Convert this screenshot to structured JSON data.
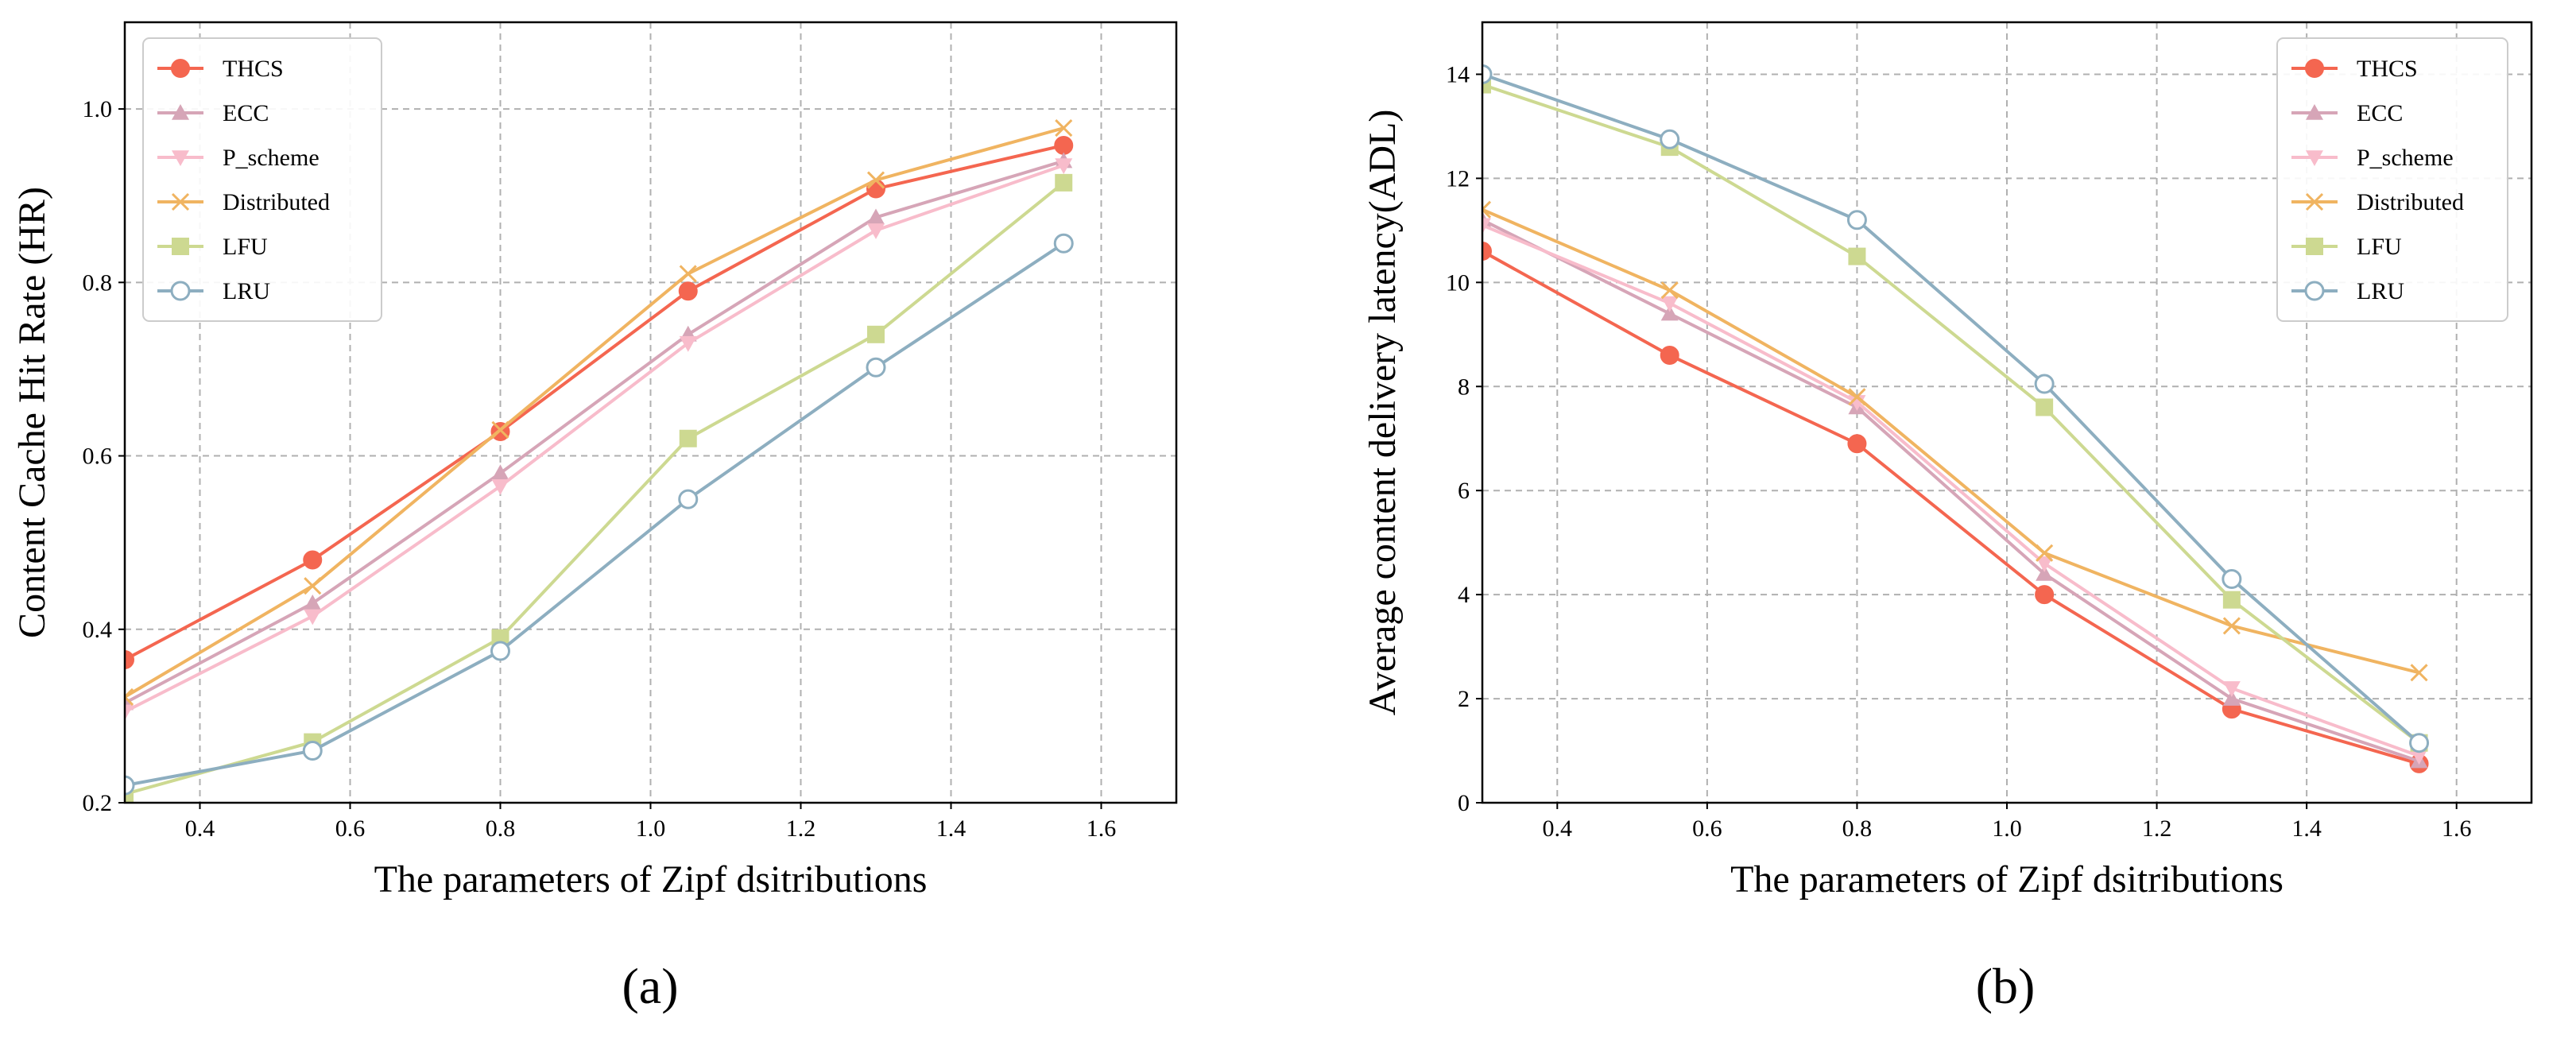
{
  "colors": {
    "THCS": "#f46650",
    "ECC": "#d6a5b7",
    "P_scheme": "#f8bccb",
    "Distributed": "#f0b461",
    "LFU": "#cdd991",
    "LRU": "#8daec0"
  },
  "chart_data": [
    {
      "type": "line",
      "caption": "(a)",
      "title": "",
      "xlabel": "The parameters  of Zipf dsitributions",
      "ylabel": "Content Cache Hit Rate (HR)",
      "xlim": [
        0.3,
        1.7
      ],
      "ylim": [
        0.2,
        1.1
      ],
      "xticks": [
        0.4,
        0.6,
        0.8,
        1.0,
        1.2,
        1.4,
        1.6
      ],
      "xtick_labels": [
        "0.4",
        "0.6",
        "0.8",
        "1.0",
        "1.2",
        "1.4",
        "1.6"
      ],
      "yticks": [
        0.2,
        0.4,
        0.6,
        0.8,
        1.0
      ],
      "ytick_labels": [
        "0.2",
        "0.4",
        "0.6",
        "0.8",
        "1.0"
      ],
      "grid": true,
      "legend_position": "top-left",
      "x": [
        0.3,
        0.55,
        0.8,
        1.05,
        1.3,
        1.55
      ],
      "series": [
        {
          "name": "THCS",
          "marker": "circle-filled",
          "values": [
            0.365,
            0.48,
            0.628,
            0.79,
            0.908,
            0.958
          ]
        },
        {
          "name": "ECC",
          "marker": "triangle-up",
          "values": [
            0.315,
            0.43,
            0.58,
            0.74,
            0.875,
            0.94
          ]
        },
        {
          "name": "P_scheme",
          "marker": "triangle-down",
          "values": [
            0.305,
            0.415,
            0.565,
            0.73,
            0.86,
            0.935
          ]
        },
        {
          "name": "Distributed",
          "marker": "x",
          "values": [
            0.322,
            0.45,
            0.63,
            0.81,
            0.918,
            0.978
          ]
        },
        {
          "name": "LFU",
          "marker": "square",
          "values": [
            0.21,
            0.27,
            0.39,
            0.62,
            0.74,
            0.915
          ]
        },
        {
          "name": "LRU",
          "marker": "circle-open",
          "values": [
            0.22,
            0.26,
            0.375,
            0.55,
            0.702,
            0.845
          ]
        }
      ]
    },
    {
      "type": "line",
      "caption": "(b)",
      "title": "",
      "xlabel": "The parameters  of Zipf dsitributions",
      "ylabel": "Average content delivery latency(ADL)",
      "xlim": [
        0.3,
        1.7
      ],
      "ylim": [
        0,
        15
      ],
      "xticks": [
        0.4,
        0.6,
        0.8,
        1.0,
        1.2,
        1.4,
        1.6
      ],
      "xtick_labels": [
        "0.4",
        "0.6",
        "0.8",
        "1.0",
        "1.2",
        "1.4",
        "1.6"
      ],
      "yticks": [
        0,
        2,
        4,
        6,
        8,
        10,
        12,
        14
      ],
      "ytick_labels": [
        "0",
        "2",
        "4",
        "6",
        "8",
        "10",
        "12",
        "14"
      ],
      "grid": true,
      "legend_position": "top-right",
      "x": [
        0.3,
        0.55,
        0.8,
        1.05,
        1.3,
        1.55
      ],
      "series": [
        {
          "name": "THCS",
          "marker": "circle-filled",
          "values": [
            10.6,
            8.6,
            6.9,
            4.0,
            1.8,
            0.75
          ]
        },
        {
          "name": "ECC",
          "marker": "triangle-up",
          "values": [
            11.2,
            9.4,
            7.6,
            4.4,
            2.0,
            0.8
          ]
        },
        {
          "name": "P_scheme",
          "marker": "triangle-down",
          "values": [
            11.1,
            9.6,
            7.7,
            4.6,
            2.2,
            0.9
          ]
        },
        {
          "name": "Distributed",
          "marker": "x",
          "values": [
            11.4,
            9.85,
            7.8,
            4.8,
            3.4,
            2.5
          ]
        },
        {
          "name": "LFU",
          "marker": "square",
          "values": [
            13.8,
            12.6,
            10.5,
            7.6,
            3.9,
            1.15
          ]
        },
        {
          "name": "LRU",
          "marker": "circle-open",
          "values": [
            14.0,
            12.75,
            11.2,
            8.05,
            4.3,
            1.15
          ]
        }
      ]
    }
  ]
}
